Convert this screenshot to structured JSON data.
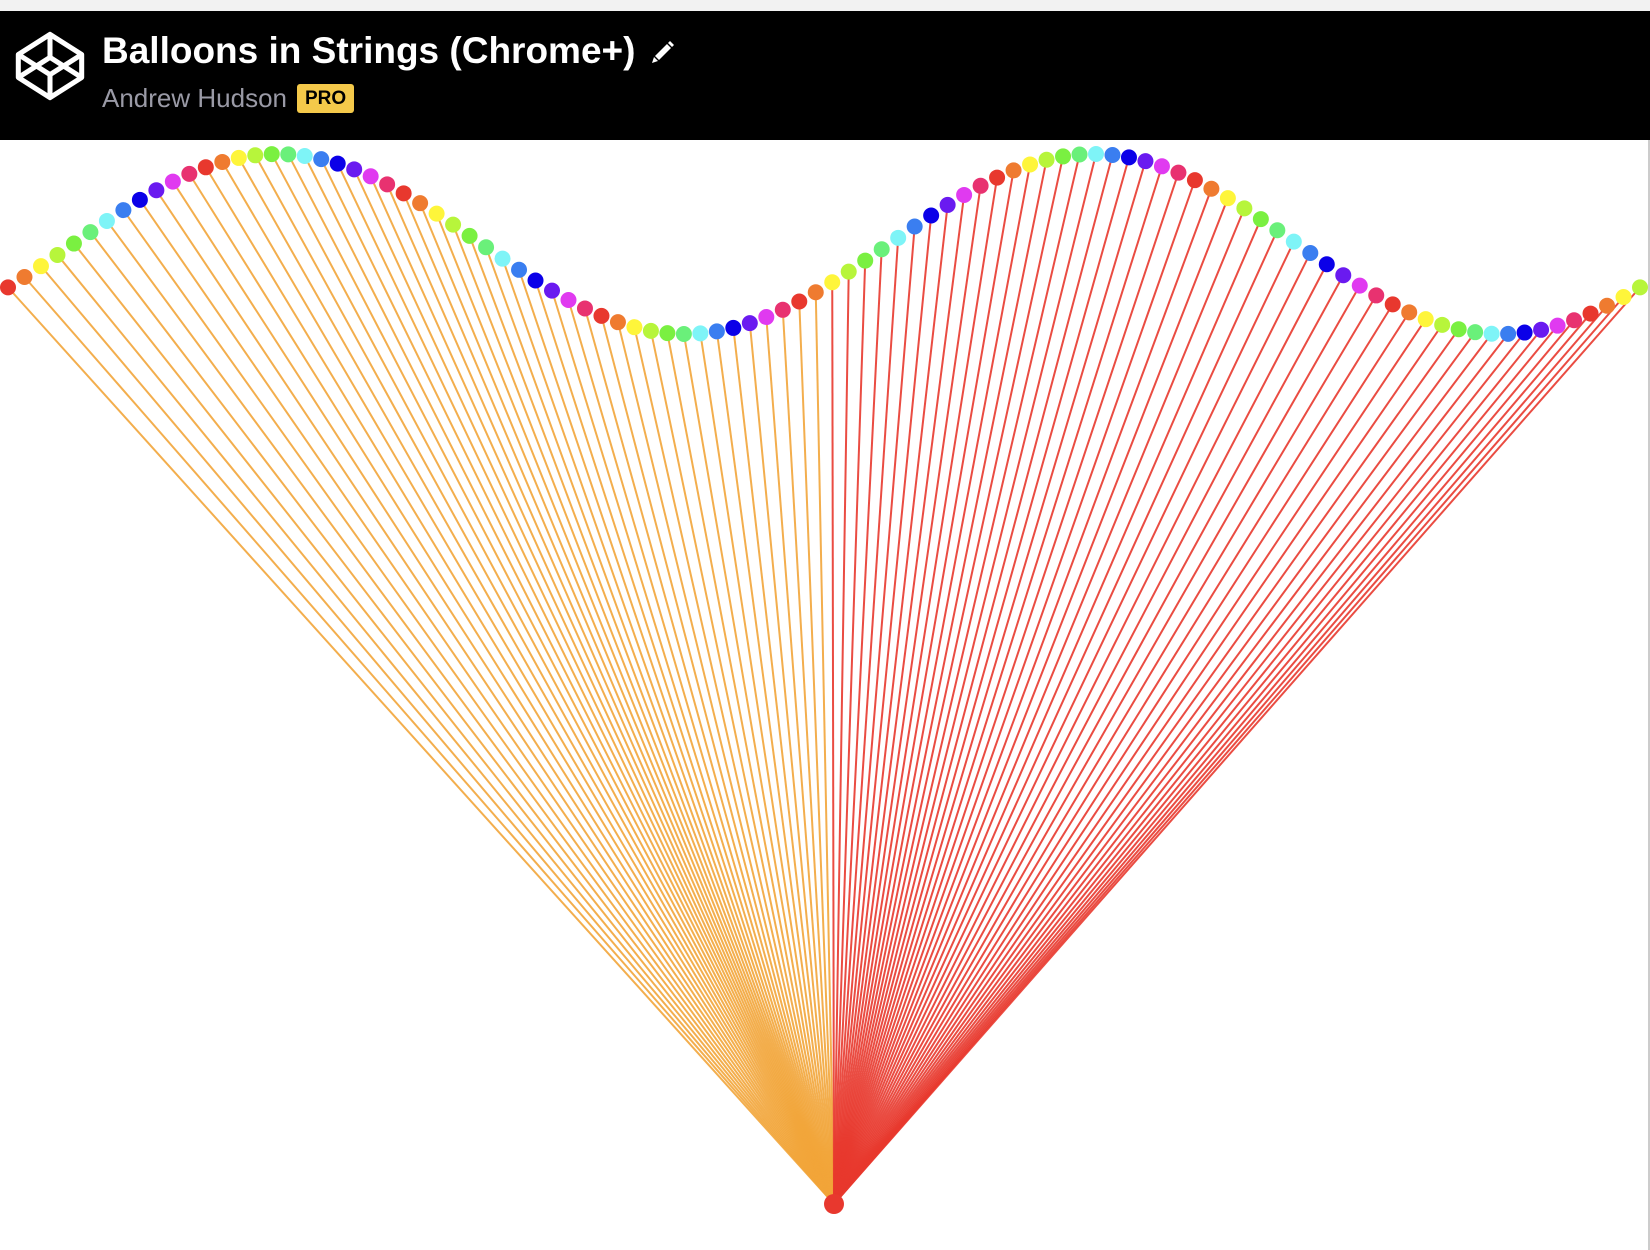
{
  "header": {
    "title": "Balloons in Strings (Chrome+)",
    "author": "Andrew Hudson",
    "badge": "PRO",
    "logo_icon": "codepen-logo-icon",
    "edit_icon": "pencil-icon"
  },
  "scene": {
    "balloon_count": 100,
    "string_colors": {
      "left_half": "#f2a53a",
      "right_half": "#e8382e"
    },
    "anchor_color": "#e8382e",
    "balloon_palette": [
      "#e8382e",
      "#ef7b30",
      "#fef53a",
      "#b7f53b",
      "#7af041",
      "#6af07a",
      "#7ef4f7",
      "#3a7ef0",
      "#0b00e8",
      "#6a1af0",
      "#e03af0",
      "#e83270"
    ]
  }
}
